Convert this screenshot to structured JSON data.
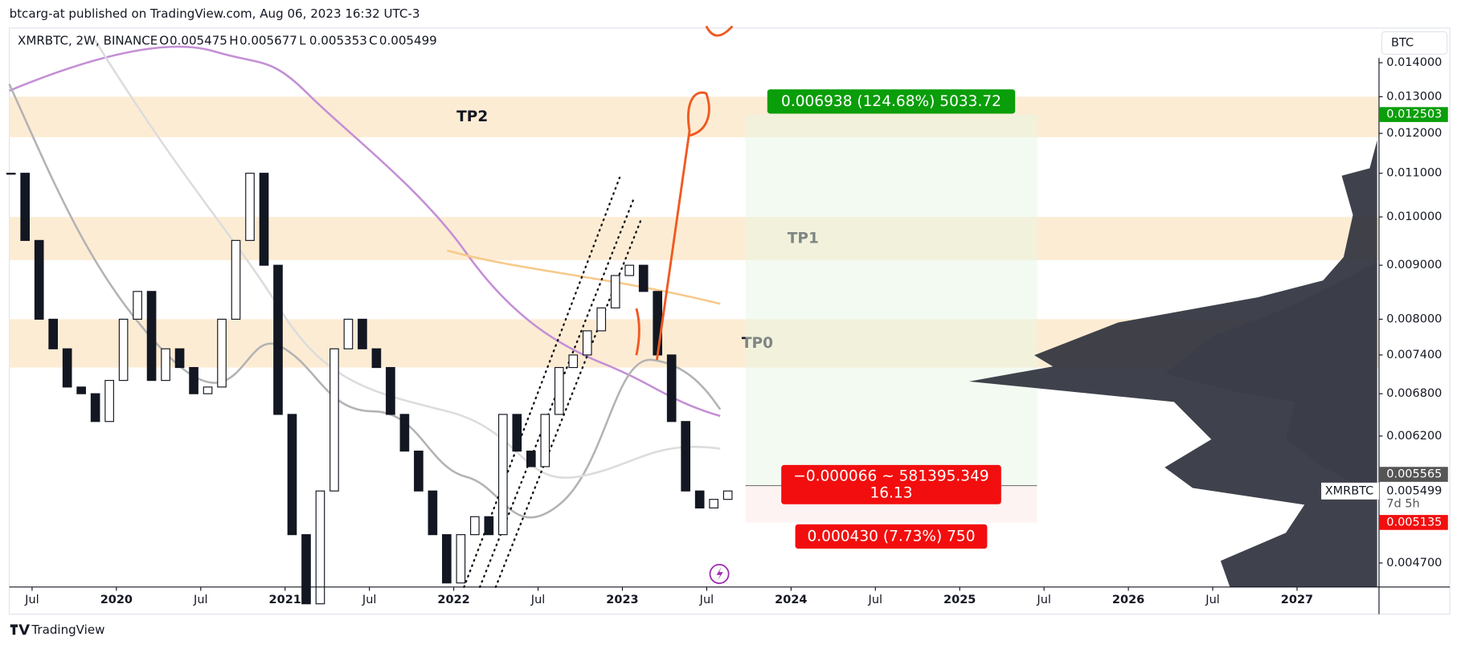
{
  "header": {
    "publisher": "btcarg-at published on TradingView.com, Aug 06, 2023 16:32 UTC-3"
  },
  "chart_data": {
    "type": "candlestick",
    "symbol": "XMRBTC, 2W, BINANCE",
    "ohlc": [
      {
        "label": "O",
        "value": "0.005475"
      },
      {
        "label": "H",
        "value": "0.005677"
      },
      {
        "label": "L",
        "value": "0.005353"
      },
      {
        "label": "C",
        "value": "0.005499"
      }
    ],
    "currency": "BTC",
    "log_scale": true,
    "x": [
      "2019-05",
      "2019-06",
      "2019-07",
      "2019-08",
      "2019-09",
      "2019-10",
      "2019-11",
      "2019-12",
      "2020-01",
      "2020-02",
      "2020-03",
      "2020-04",
      "2020-05",
      "2020-06",
      "2020-07",
      "2020-08",
      "2020-09",
      "2020-10",
      "2020-11",
      "2020-12",
      "2021-01",
      "2021-02",
      "2021-03",
      "2021-04",
      "2021-05",
      "2021-06",
      "2021-07",
      "2021-08",
      "2021-09",
      "2021-10",
      "2021-11",
      "2021-12",
      "2022-01",
      "2022-02",
      "2022-03",
      "2022-04",
      "2022-05",
      "2022-06",
      "2022-07",
      "2022-08",
      "2022-09",
      "2022-10",
      "2022-11",
      "2022-12",
      "2023-01",
      "2023-02",
      "2023-03",
      "2023-04",
      "2023-05",
      "2023-06",
      "2023-07",
      "2023-08"
    ],
    "closes": [
      0.011,
      0.0095,
      0.008,
      0.0075,
      0.0069,
      0.0068,
      0.0064,
      0.007,
      0.008,
      0.0085,
      0.007,
      0.0075,
      0.0072,
      0.0068,
      0.0069,
      0.008,
      0.0095,
      0.011,
      0.009,
      0.0065,
      0.005,
      0.0043,
      0.0055,
      0.0075,
      0.008,
      0.0075,
      0.0072,
      0.0065,
      0.006,
      0.0055,
      0.005,
      0.0045,
      0.005,
      0.0052,
      0.005,
      0.0065,
      0.006,
      0.0058,
      0.0065,
      0.0072,
      0.0074,
      0.0078,
      0.0082,
      0.0088,
      0.009,
      0.0085,
      0.0074,
      0.0064,
      0.0055,
      0.0053,
      0.0054,
      0.0055
    ],
    "xlim": [
      2019.365,
      2027.486
    ],
    "xticks": [
      {
        "value": 2019.5,
        "label": "Jul"
      },
      2020,
      {
        "value": 2020.5,
        "label": "Jul"
      },
      2021,
      {
        "value": 2021.5,
        "label": "Jul"
      },
      2022,
      {
        "value": 2022.5,
        "label": "Jul"
      },
      2023,
      {
        "value": 2023.5,
        "label": "Jul"
      },
      2024,
      {
        "value": 2024.5,
        "label": "Jul"
      },
      2025,
      {
        "value": 2025.5,
        "label": "Jul"
      },
      2026,
      {
        "value": 2026.5,
        "label": "Jul"
      },
      2027
    ],
    "ylim": [
      0.00446,
      0.0151
    ],
    "yticks": [
      {
        "value": 0.014,
        "label": "0.014000"
      },
      {
        "value": 0.013,
        "label": "0.013000"
      },
      {
        "value": 0.012,
        "label": "0.012000"
      },
      {
        "value": 0.011,
        "label": "0.011000"
      },
      {
        "value": 0.01,
        "label": "0.010000"
      },
      {
        "value": 0.009,
        "label": "0.009000"
      },
      {
        "value": 0.008,
        "label": "0.008000"
      },
      {
        "value": 0.0074,
        "label": "0.007400"
      },
      {
        "value": 0.0068,
        "label": "0.006800"
      },
      {
        "value": 0.0062,
        "label": "0.006200"
      },
      {
        "value": 0.0047,
        "label": "0.004700"
      }
    ],
    "zones": [
      {
        "label": "TP2",
        "low": 0.0119,
        "high": 0.013
      },
      {
        "label": "TP1",
        "low": 0.0091,
        "high": 0.01
      },
      {
        "label": "TP0",
        "low": 0.0072,
        "high": 0.008
      }
    ],
    "position": {
      "target": 0.012503,
      "entry": 0.005565,
      "stop": 0.005135,
      "target_label": "0.006938 (124.68%) 5033.72",
      "stats": [
        "−0.000066 ~ 581395.349",
        "16.13"
      ],
      "stop_label": "0.000430 (7.73%) 750"
    },
    "badges": [
      {
        "value": 0.012503,
        "label": "0.012503",
        "color": "#0a9e0a"
      },
      {
        "value": 0.005565,
        "label": "0.005565",
        "color": "#555555"
      },
      {
        "value": 0.005135,
        "label": "0.005135",
        "color": "#f20e0e"
      }
    ],
    "last": {
      "symbol": "XMRBTC",
      "value": 0.005499,
      "label": "0.005499",
      "countdown": "7d 5h"
    }
  },
  "footer": {
    "brand": "TradingView"
  }
}
